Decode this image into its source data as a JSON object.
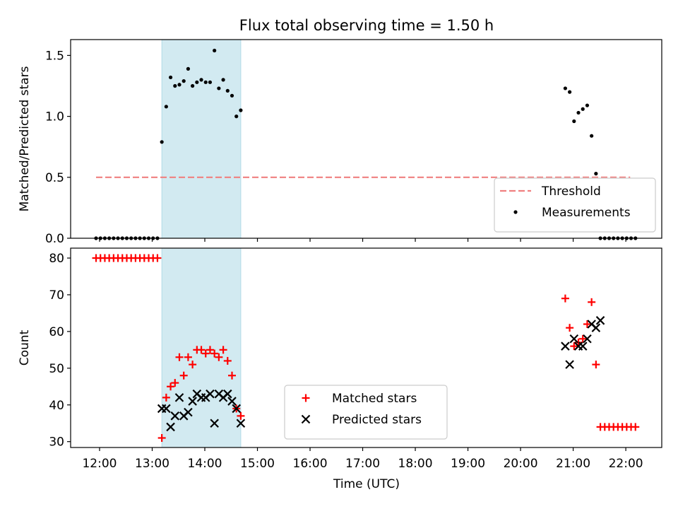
{
  "chart_data": {
    "title": "Flux total observing time = 1.50 h",
    "shaded_interval": {
      "start": "13:11",
      "end": "14:41",
      "color": "#add8e6"
    },
    "x_axis": {
      "label": "Time (UTC)",
      "unit": "time of day UTC",
      "range": [
        "11:27",
        "22:41"
      ],
      "ticks": [
        "12:00",
        "13:00",
        "14:00",
        "15:00",
        "16:00",
        "17:00",
        "18:00",
        "19:00",
        "20:00",
        "21:00",
        "22:00"
      ]
    },
    "panels": [
      {
        "type": "scatter",
        "ylabel": "Matched/Predicted stars",
        "ylim": [
          0,
          1.63
        ],
        "yticks": [
          "0.0",
          "0.5",
          "1.0",
          "1.5"
        ],
        "ytick_values": [
          0,
          0.5,
          1.0,
          1.5
        ],
        "legend_position": "lower-right",
        "threshold": {
          "name": "Threshold",
          "value": 0.5,
          "x_start": "11:56",
          "x_end": "22:05",
          "color": "#f08080",
          "style": "dashed"
        },
        "series": [
          {
            "name": "Measurements",
            "marker": "dot",
            "color": "#000000",
            "points": [
              [
                "11:56",
                0
              ],
              [
                "12:01",
                0
              ],
              [
                "12:06",
                0
              ],
              [
                "12:11",
                0
              ],
              [
                "12:16",
                0
              ],
              [
                "12:21",
                0
              ],
              [
                "12:26",
                0
              ],
              [
                "12:31",
                0
              ],
              [
                "12:36",
                0
              ],
              [
                "12:41",
                0
              ],
              [
                "12:46",
                0
              ],
              [
                "12:51",
                0
              ],
              [
                "12:56",
                0
              ],
              [
                "13:01",
                0
              ],
              [
                "13:06",
                0
              ],
              [
                "13:11",
                0.79
              ],
              [
                "13:16",
                1.08
              ],
              [
                "13:21",
                1.32
              ],
              [
                "13:26",
                1.25
              ],
              [
                "13:31",
                1.26
              ],
              [
                "13:36",
                1.29
              ],
              [
                "13:41",
                1.39
              ],
              [
                "13:46",
                1.25
              ],
              [
                "13:51",
                1.28
              ],
              [
                "13:56",
                1.3
              ],
              [
                "14:01",
                1.28
              ],
              [
                "14:06",
                1.28
              ],
              [
                "14:11",
                1.54
              ],
              [
                "14:16",
                1.23
              ],
              [
                "14:21",
                1.3
              ],
              [
                "14:26",
                1.21
              ],
              [
                "14:31",
                1.17
              ],
              [
                "14:36",
                1.0
              ],
              [
                "14:41",
                1.05
              ],
              [
                "20:51",
                1.23
              ],
              [
                "20:56",
                1.2
              ],
              [
                "21:01",
                0.96
              ],
              [
                "21:06",
                1.03
              ],
              [
                "21:11",
                1.06
              ],
              [
                "21:16",
                1.09
              ],
              [
                "21:21",
                0.84
              ],
              [
                "21:26",
                0.53
              ],
              [
                "21:31",
                0
              ],
              [
                "21:36",
                0
              ],
              [
                "21:41",
                0
              ],
              [
                "21:46",
                0
              ],
              [
                "21:51",
                0
              ],
              [
                "21:56",
                0
              ],
              [
                "22:01",
                0
              ],
              [
                "22:06",
                0
              ],
              [
                "22:11",
                0
              ]
            ]
          }
        ]
      },
      {
        "type": "scatter",
        "ylabel": "Count",
        "ylim": [
          28.4,
          82.7
        ],
        "yticks": [
          "30",
          "40",
          "50",
          "60",
          "70",
          "80"
        ],
        "ytick_values": [
          30,
          40,
          50,
          60,
          70,
          80
        ],
        "legend_position": "lower-center",
        "series": [
          {
            "name": "Matched stars",
            "marker": "plus",
            "color": "#ff0000",
            "points": [
              [
                "11:56",
                80
              ],
              [
                "12:01",
                80
              ],
              [
                "12:06",
                80
              ],
              [
                "12:11",
                80
              ],
              [
                "12:16",
                80
              ],
              [
                "12:21",
                80
              ],
              [
                "12:26",
                80
              ],
              [
                "12:31",
                80
              ],
              [
                "12:36",
                80
              ],
              [
                "12:41",
                80
              ],
              [
                "12:46",
                80
              ],
              [
                "12:51",
                80
              ],
              [
                "12:56",
                80
              ],
              [
                "13:01",
                80
              ],
              [
                "13:06",
                80
              ],
              [
                "13:11",
                31
              ],
              [
                "13:16",
                42
              ],
              [
                "13:21",
                45
              ],
              [
                "13:26",
                46
              ],
              [
                "13:31",
                53
              ],
              [
                "13:36",
                48
              ],
              [
                "13:41",
                53
              ],
              [
                "13:46",
                51
              ],
              [
                "13:51",
                55
              ],
              [
                "13:56",
                55
              ],
              [
                "14:01",
                54
              ],
              [
                "14:06",
                55
              ],
              [
                "14:11",
                54
              ],
              [
                "14:16",
                53
              ],
              [
                "14:21",
                55
              ],
              [
                "14:26",
                52
              ],
              [
                "14:31",
                48
              ],
              [
                "14:36",
                39
              ],
              [
                "14:41",
                37
              ],
              [
                "20:51",
                69
              ],
              [
                "20:56",
                61
              ],
              [
                "21:01",
                56
              ],
              [
                "21:06",
                57
              ],
              [
                "21:11",
                58
              ],
              [
                "21:16",
                62
              ],
              [
                "21:21",
                68
              ],
              [
                "21:26",
                51
              ],
              [
                "21:31",
                34
              ],
              [
                "21:36",
                34
              ],
              [
                "21:41",
                34
              ],
              [
                "21:46",
                34
              ],
              [
                "21:51",
                34
              ],
              [
                "21:56",
                34
              ],
              [
                "22:01",
                34
              ],
              [
                "22:06",
                34
              ],
              [
                "22:11",
                34
              ]
            ]
          },
          {
            "name": "Predicted stars",
            "marker": "x",
            "color": "#000000",
            "points": [
              [
                "13:11",
                39
              ],
              [
                "13:16",
                39
              ],
              [
                "13:21",
                34
              ],
              [
                "13:26",
                37
              ],
              [
                "13:31",
                42
              ],
              [
                "13:36",
                37
              ],
              [
                "13:41",
                38
              ],
              [
                "13:46",
                41
              ],
              [
                "13:51",
                43
              ],
              [
                "13:56",
                42
              ],
              [
                "14:01",
                42
              ],
              [
                "14:06",
                43
              ],
              [
                "14:11",
                35
              ],
              [
                "14:16",
                43
              ],
              [
                "14:21",
                42
              ],
              [
                "14:26",
                43
              ],
              [
                "14:31",
                41
              ],
              [
                "14:36",
                39
              ],
              [
                "14:41",
                35
              ],
              [
                "20:51",
                56
              ],
              [
                "20:56",
                51
              ],
              [
                "21:01",
                58
              ],
              [
                "21:06",
                56
              ],
              [
                "21:11",
                56
              ],
              [
                "21:16",
                58
              ],
              [
                "21:21",
                62
              ],
              [
                "21:26",
                61
              ],
              [
                "21:31",
                63
              ]
            ]
          }
        ]
      }
    ]
  }
}
